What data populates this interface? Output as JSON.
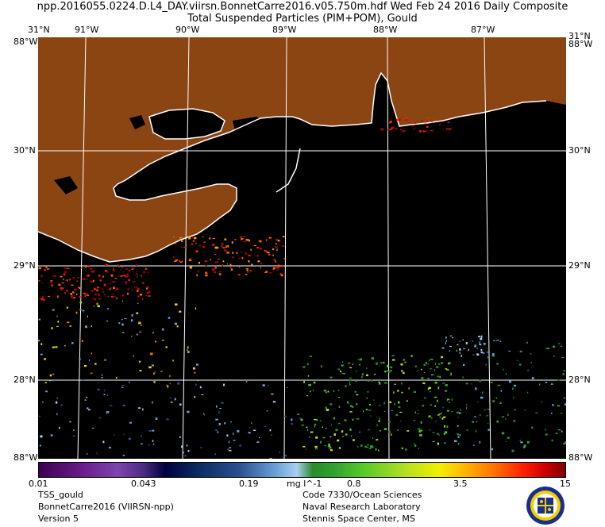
{
  "header": {
    "line1": "npp.2016055.0224.D.L4_DAY.viirsn.BonnetCarre2016.v05.750m.hdf   Wed Feb 24 2016 Daily Composite",
    "line2": "Total Suspended Particles (PIM+POM), Gould"
  },
  "map": {
    "lon_labels": [
      "91°W",
      "90°W",
      "89°W",
      "88°W",
      "87°W"
    ],
    "lat_labels": [
      "31°N",
      "30°N",
      "29°N",
      "28°N"
    ],
    "corner_labels": {
      "top_left": "88°W",
      "top_right": "88°W",
      "bottom_left": "88°W",
      "bottom_right": "88°W"
    },
    "colors": {
      "land": "#8b4513",
      "water": "#000000",
      "coast": "#ffffff",
      "grid": "#ffffff"
    }
  },
  "colorbar": {
    "ticks": [
      "0.01",
      "0.043",
      "0.19",
      "0.8",
      "3.5",
      "15"
    ],
    "unit": "mg l^-1"
  },
  "footer": {
    "left": [
      "TSS_gould",
      "BonnetCarre2016 (VIIRSN-npp)",
      "Version 5"
    ],
    "right": [
      "Code 7330/Ocean Sciences",
      "Naval Research Laboratory",
      "Stennis Space Center, MS"
    ],
    "seal_icon": "nrl-seal-icon"
  }
}
